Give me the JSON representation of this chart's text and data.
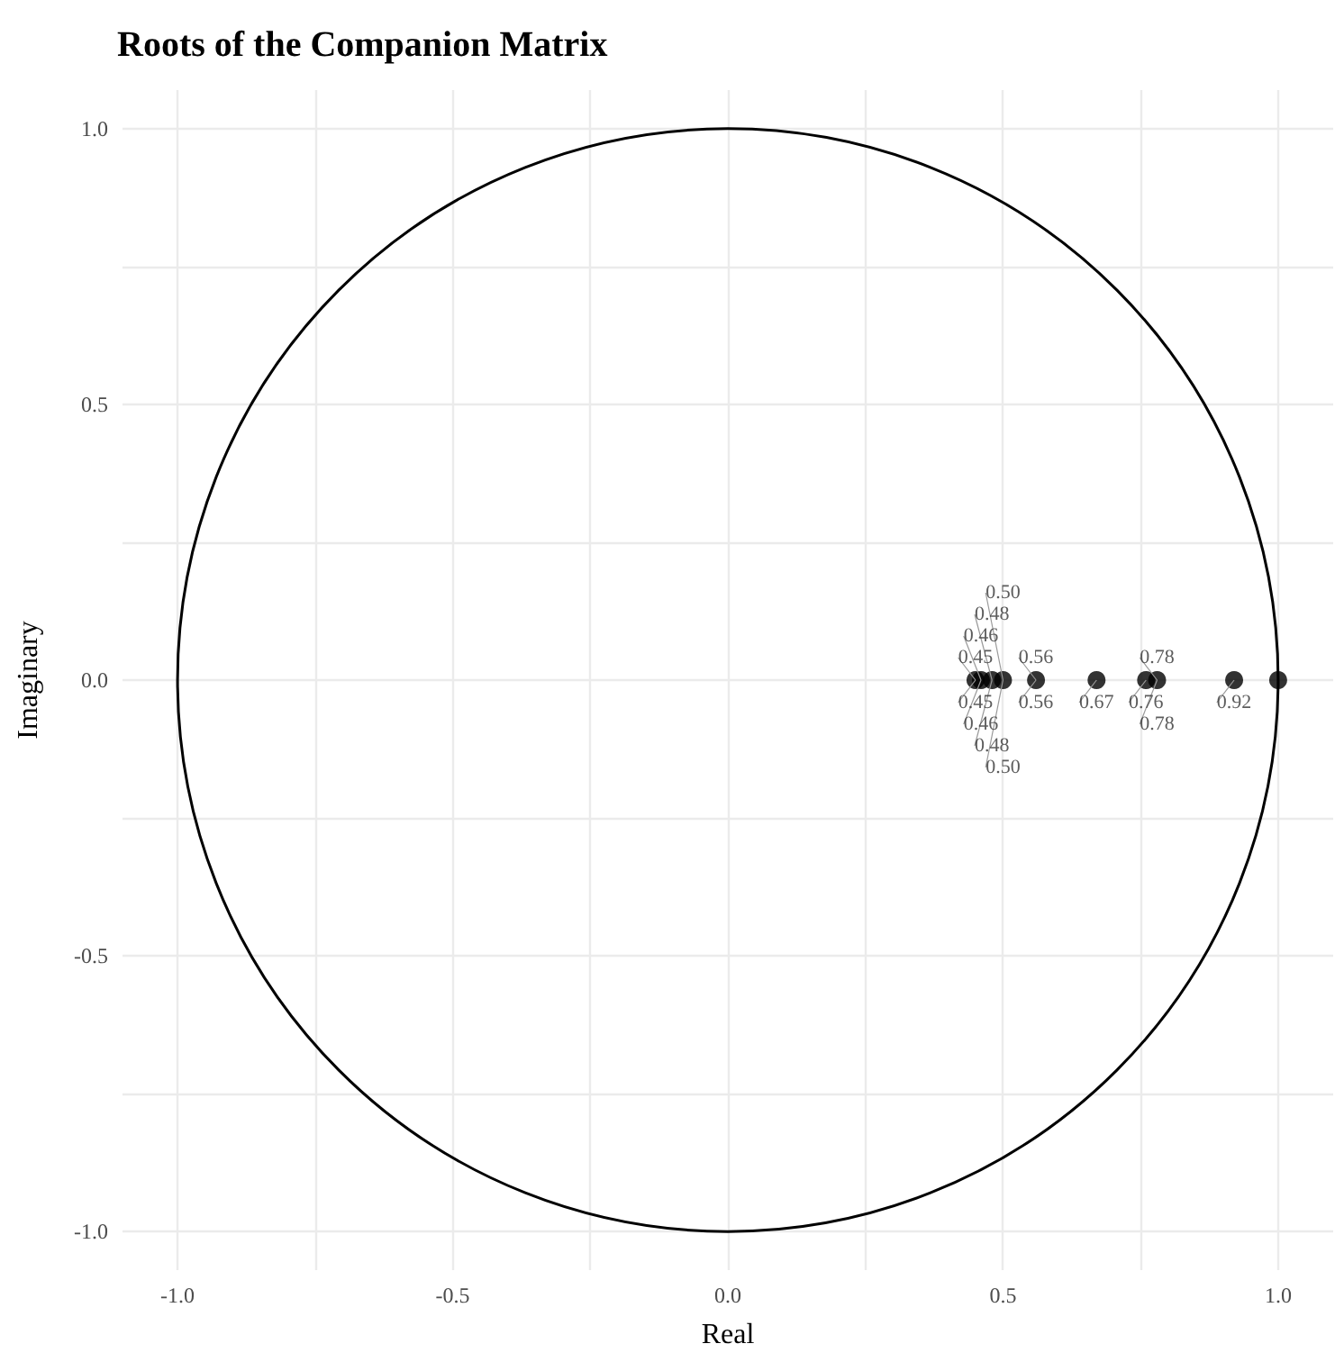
{
  "chart_data": {
    "type": "scatter",
    "title": "Roots of the Companion Matrix",
    "xlabel": "Real",
    "ylabel": "Imaginary",
    "xlim": [
      -1.1,
      1.1
    ],
    "ylim": [
      -1.07,
      1.07
    ],
    "xticks": [
      {
        "value": -1,
        "label": "-1.0"
      },
      {
        "value": -0.75,
        "label": null
      },
      {
        "value": -0.5,
        "label": "-0.5"
      },
      {
        "value": -0.25,
        "label": null
      },
      {
        "value": 0,
        "label": "0.0"
      },
      {
        "value": 0.25,
        "label": null
      },
      {
        "value": 0.5,
        "label": "0.5"
      },
      {
        "value": 0.75,
        "label": null
      },
      {
        "value": 1,
        "label": "1.0"
      }
    ],
    "yticks": [
      {
        "value": -1,
        "label": "-1.0"
      },
      {
        "value": -0.75,
        "label": null
      },
      {
        "value": -0.5,
        "label": "-0.5"
      },
      {
        "value": -0.25,
        "label": null
      },
      {
        "value": 0,
        "label": "0.0"
      },
      {
        "value": 0.25,
        "label": null
      },
      {
        "value": 0.5,
        "label": "0.5"
      },
      {
        "value": 0.75,
        "label": null
      },
      {
        "value": 1,
        "label": "1.0"
      }
    ],
    "grid": true,
    "marker": "circle",
    "series": [
      {
        "color": "#000000",
        "x": [
          0.45,
          0.46,
          0.48,
          0.5,
          0.56,
          0.67,
          0.76,
          0.78,
          0.92,
          1.0
        ],
        "values": [
          0,
          0,
          0,
          0,
          0,
          0,
          0,
          0,
          0,
          0
        ]
      }
    ],
    "annotations": [
      {
        "text": "0.45",
        "x": 0.45,
        "y": 0
      },
      {
        "text": "0.46",
        "x": 0.46,
        "y": 0
      },
      {
        "text": "0.48",
        "x": 0.48,
        "y": 0
      },
      {
        "text": "0.50",
        "x": 0.5,
        "y": 0
      },
      {
        "text": "0.56",
        "x": 0.56,
        "y": 0
      },
      {
        "text": "0.67",
        "x": 0.67,
        "y": 0
      },
      {
        "text": "0.76",
        "x": 0.76,
        "y": 0
      },
      {
        "text": "0.78",
        "x": 0.78,
        "y": 0
      },
      {
        "text": "0.92",
        "x": 0.92,
        "y": 0
      },
      {
        "text": "0.45",
        "x": 0.45,
        "y": 0
      },
      {
        "text": "0.46",
        "x": 0.46,
        "y": 0
      },
      {
        "text": "0.48",
        "x": 0.48,
        "y": 0
      },
      {
        "text": "0.50",
        "x": 0.5,
        "y": 0
      },
      {
        "text": "0.56",
        "x": 0.56,
        "y": 0
      },
      {
        "text": "0.78",
        "x": 0.78,
        "y": 0
      }
    ]
  }
}
